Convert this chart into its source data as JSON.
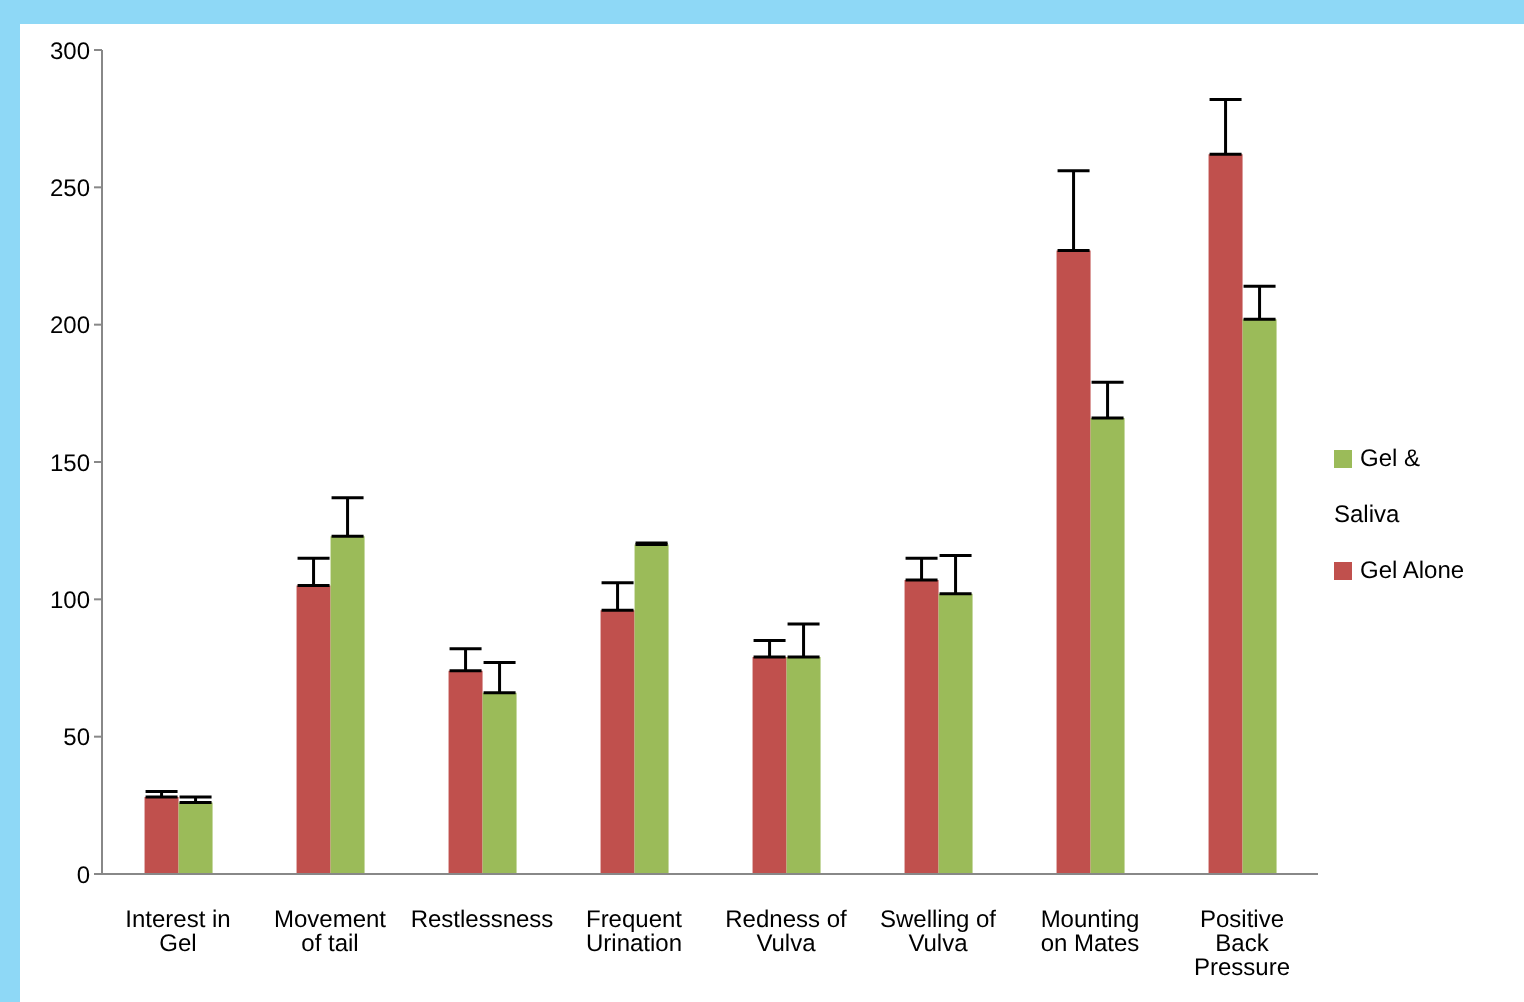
{
  "chart_data": {
    "type": "bar",
    "categories": [
      "Interest in Gel",
      "Movement of tail",
      "Restlessness",
      "Frequent Urination",
      "Redness of Vulva",
      "Swelling of Vulva",
      "Mounting on Mates",
      "Positive Back Pressure"
    ],
    "series": [
      {
        "name": "Gel Alone",
        "color": "#c0504d",
        "values": [
          28,
          105,
          74,
          96,
          79,
          107,
          227,
          262
        ],
        "errors": [
          [
            28,
            30
          ],
          [
            105,
            115
          ],
          [
            74,
            82
          ],
          [
            96,
            106
          ],
          [
            79,
            85
          ],
          [
            107,
            115
          ],
          [
            227,
            256
          ],
          [
            262,
            282
          ]
        ]
      },
      {
        "name": "Gel & Saliva",
        "color": "#9bbb59",
        "values": [
          26,
          123,
          66,
          120,
          79,
          102,
          166,
          202
        ],
        "errors": [
          [
            26,
            28
          ],
          [
            123,
            137
          ],
          [
            66,
            77
          ],
          [
            120,
            120.5
          ],
          [
            79,
            91
          ],
          [
            102,
            116
          ],
          [
            166,
            179
          ],
          [
            202,
            214
          ]
        ]
      }
    ],
    "ylim": [
      0,
      300
    ],
    "yticks": [
      0,
      50,
      100,
      150,
      200,
      250,
      300
    ],
    "grid": false,
    "legend": "right"
  }
}
